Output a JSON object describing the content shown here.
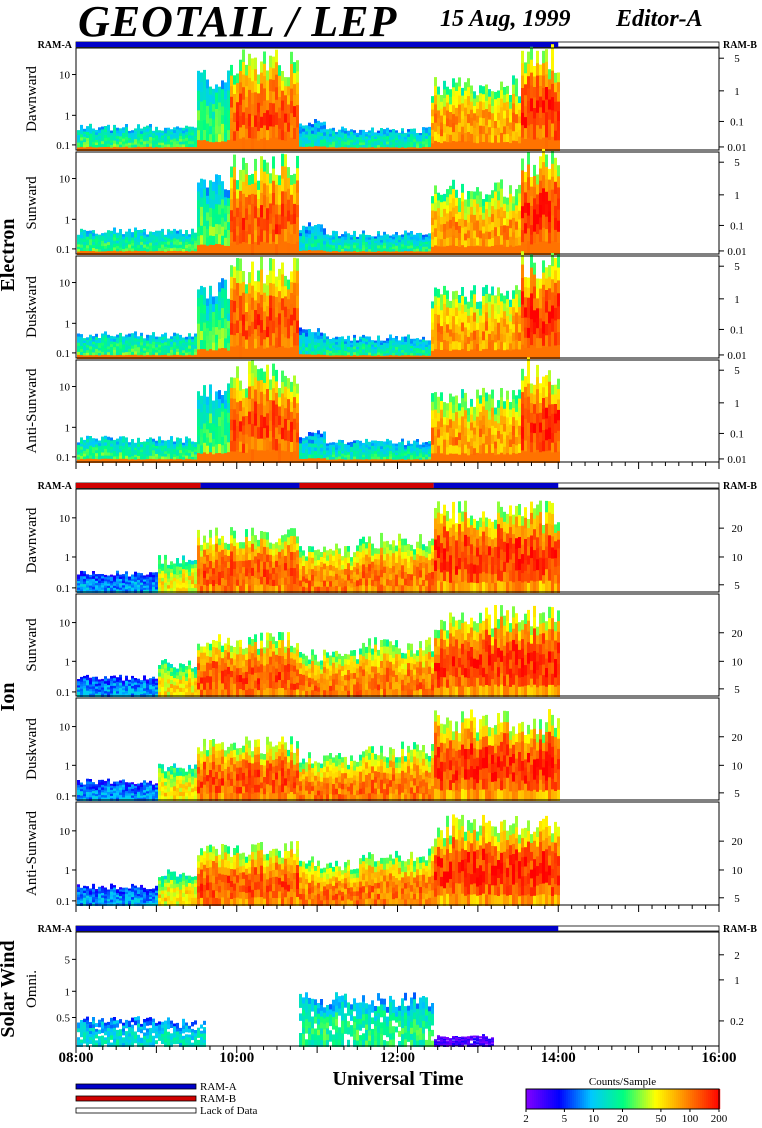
{
  "title": "GEOTAIL / LEP",
  "date": "15 Aug, 1999",
  "editor": "Editor-A",
  "colors": {
    "ram_a": "#0000c8",
    "ram_b": "#d00000",
    "lack_of_data": "#ffffff",
    "colorbar": [
      "#8000ff",
      "#0000ff",
      "#00c8ff",
      "#00ff80",
      "#ffff00",
      "#ff8000",
      "#ff0000"
    ]
  },
  "chart_data": {
    "type": "heatmap",
    "xlabel": "Universal Time",
    "x_ticks": [
      "08:00",
      "10:00",
      "12:00",
      "14:00",
      "16:00"
    ],
    "x_range_hours": [
      8,
      16
    ],
    "data_end_hour": 14.0,
    "colorbar": {
      "label": "Counts/Sample",
      "ticks": [
        "2",
        "5",
        "10",
        "20",
        "50",
        "100",
        "200"
      ],
      "range": [
        2,
        200
      ],
      "scale": "log"
    },
    "legend": [
      {
        "label": "RAM-A",
        "color": "#0000c8"
      },
      {
        "label": "RAM-B",
        "color": "#d00000"
      },
      {
        "label": "Lack of Data",
        "color": "#ffffff"
      }
    ],
    "groups": [
      {
        "name": "Electron",
        "ram_left": "RAM-A",
        "ram_right": "RAM-B",
        "ram_bar": [
          {
            "start": 8.0,
            "end": 14.0,
            "mode": "RAM-A"
          }
        ],
        "panels": [
          {
            "label": "Dawnward",
            "left_ticks": [
              "10",
              "1",
              "0.1"
            ],
            "right_ticks": [
              "5",
              "1",
              "0.1",
              "0.01"
            ]
          },
          {
            "label": "Sunward",
            "left_ticks": [
              "10",
              "1",
              "0.1"
            ],
            "right_ticks": [
              "5",
              "1",
              "0.1",
              "0.01"
            ]
          },
          {
            "label": "Duskward",
            "left_ticks": [
              "10",
              "1",
              "0.1"
            ],
            "right_ticks": [
              "5",
              "1",
              "0.1",
              "0.01"
            ]
          },
          {
            "label": "Anti-Sunward",
            "left_ticks": [
              "10",
              "1",
              "0.1"
            ],
            "right_ticks": [
              "5",
              "1",
              "0.1",
              "0.01"
            ]
          }
        ]
      },
      {
        "name": "Ion",
        "ram_left": "RAM-A",
        "ram_right": "RAM-B",
        "ram_bar": [
          {
            "start": 8.0,
            "end": 9.55,
            "mode": "RAM-B"
          },
          {
            "start": 9.55,
            "end": 10.78,
            "mode": "RAM-A"
          },
          {
            "start": 10.78,
            "end": 12.45,
            "mode": "RAM-B"
          },
          {
            "start": 12.45,
            "end": 14.0,
            "mode": "RAM-A"
          }
        ],
        "panels": [
          {
            "label": "Dawnward",
            "left_ticks": [
              "10",
              "1",
              "0.1"
            ],
            "right_ticks": [
              "20",
              "10",
              "5"
            ]
          },
          {
            "label": "Sunward",
            "left_ticks": [
              "10",
              "1",
              "0.1"
            ],
            "right_ticks": [
              "20",
              "10",
              "5"
            ]
          },
          {
            "label": "Duskward",
            "left_ticks": [
              "10",
              "1",
              "0.1"
            ],
            "right_ticks": [
              "20",
              "10",
              "5"
            ]
          },
          {
            "label": "Anti-Sunward",
            "left_ticks": [
              "10",
              "1",
              "0.1"
            ],
            "right_ticks": [
              "20",
              "10",
              "5"
            ]
          }
        ]
      },
      {
        "name": "Solar Wind",
        "ram_left": "RAM-A",
        "ram_right": "RAM-B",
        "ram_bar": [
          {
            "start": 8.0,
            "end": 14.0,
            "mode": "RAM-A"
          }
        ],
        "panels": [
          {
            "label": "Omni.",
            "left_ticks": [
              "5",
              "1",
              "0.5"
            ],
            "right_ticks": [
              "2",
              "1",
              "0.2"
            ]
          }
        ]
      }
    ]
  }
}
